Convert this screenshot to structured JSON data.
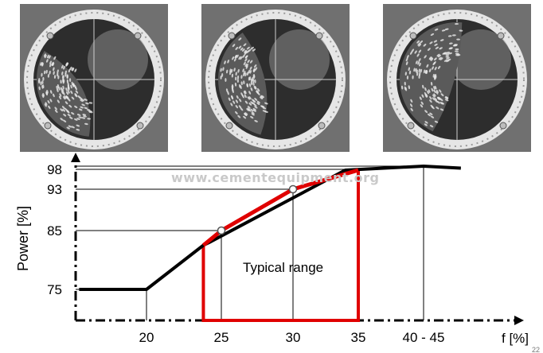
{
  "figure": {
    "watermark": "www.cementequipment.org",
    "range_label": "Typical range",
    "page_number": "22"
  },
  "photos": [
    {
      "name": "mill-charge-photo-1",
      "charge_start_deg": 150,
      "charge_end_deg": 265
    },
    {
      "name": "mill-charge-photo-2",
      "charge_start_deg": 125,
      "charge_end_deg": 255
    },
    {
      "name": "mill-charge-photo-3",
      "charge_start_deg": 85,
      "charge_end_deg": 245
    }
  ],
  "chart_data": {
    "type": "line",
    "xlabel": "f [%]",
    "ylabel": "Power [%]",
    "x_ticks": [
      {
        "label": "20",
        "pos": 20
      },
      {
        "label": "25",
        "pos": 25
      },
      {
        "label": "30",
        "pos": 30
      },
      {
        "label": "35",
        "pos": 35
      },
      {
        "label": "40 - 45",
        "pos": 42
      }
    ],
    "y_ticks": [
      {
        "label": "75",
        "value": 75
      },
      {
        "label": "85",
        "value": 85
      },
      {
        "label": "93",
        "value": 93
      },
      {
        "label": "98",
        "value": 98
      }
    ],
    "series": [
      {
        "color": "#000000",
        "points": [
          [
            15.5,
            75
          ],
          [
            20,
            75
          ],
          [
            23.8,
            82.5
          ],
          [
            24.2,
            83
          ],
          [
            34,
            97.8
          ],
          [
            42,
            98.8
          ],
          [
            46,
            98.3
          ]
        ]
      },
      {
        "color": "#e00000",
        "points": [
          [
            23.8,
            82.5
          ],
          [
            25,
            85
          ],
          [
            30,
            93
          ],
          [
            35,
            97.8
          ]
        ]
      }
    ],
    "typical_range": {
      "x_start": 23.8,
      "x_end": 35,
      "color": "#e00000"
    },
    "markers": [
      {
        "x": 25,
        "y": 85
      },
      {
        "x": 30,
        "y": 93
      }
    ],
    "reference_lines": [
      {
        "x": 20,
        "y": 75
      },
      {
        "x": 25,
        "y": 85
      },
      {
        "x": 30,
        "y": 93
      },
      {
        "x": 35,
        "y": 98
      },
      {
        "x": 42,
        "y": 98.8
      }
    ]
  }
}
